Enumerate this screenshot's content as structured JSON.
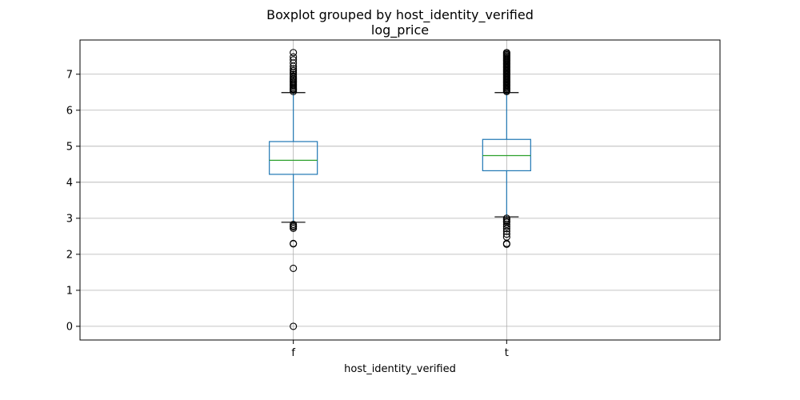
{
  "chart_data": {
    "type": "boxplot",
    "title": "Boxplot grouped by host_identity_verified",
    "subtitle": "log_price",
    "xlabel": "host_identity_verified",
    "ylabel": "",
    "ylim": [
      -0.38,
      7.95
    ],
    "yticks": [
      "0",
      "1",
      "2",
      "3",
      "4",
      "5",
      "6",
      "7"
    ],
    "grid": true,
    "categories": [
      "f",
      "t"
    ],
    "boxes": [
      {
        "category": "f",
        "whisker_low": 2.89,
        "q1": 4.22,
        "median": 4.61,
        "q3": 5.13,
        "whisker_high": 6.49,
        "outliers_low": [
          2.83,
          2.79,
          2.76,
          2.72,
          2.3,
          2.29,
          1.61,
          0.0
        ],
        "outliers_high": [
          6.52,
          6.56,
          6.59,
          6.62,
          6.66,
          6.7,
          6.73,
          6.77,
          6.8,
          6.84,
          6.87,
          6.91,
          6.95,
          7.0,
          7.05,
          7.1,
          7.15,
          7.22,
          7.31,
          7.4,
          7.48,
          7.6
        ]
      },
      {
        "category": "t",
        "whisker_low": 3.04,
        "q1": 4.32,
        "median": 4.74,
        "q3": 5.19,
        "whisker_high": 6.49,
        "outliers_low": [
          3.0,
          2.96,
          2.92,
          2.89,
          2.83,
          2.77,
          2.71,
          2.64,
          2.56,
          2.48,
          2.3,
          2.28
        ],
        "outliers_high": [
          6.52,
          6.55,
          6.58,
          6.61,
          6.64,
          6.67,
          6.7,
          6.73,
          6.76,
          6.79,
          6.82,
          6.85,
          6.88,
          6.91,
          6.94,
          6.97,
          7.0,
          7.03,
          7.06,
          7.09,
          7.12,
          7.15,
          7.18,
          7.21,
          7.24,
          7.27,
          7.3,
          7.33,
          7.36,
          7.39,
          7.42,
          7.45,
          7.48,
          7.51,
          7.54,
          7.57,
          7.6
        ]
      }
    ],
    "colors": {
      "box": "#1f77b4",
      "median": "#2ca02c",
      "grid": "#b0b0b0",
      "outlier_edge": "#000000"
    }
  }
}
